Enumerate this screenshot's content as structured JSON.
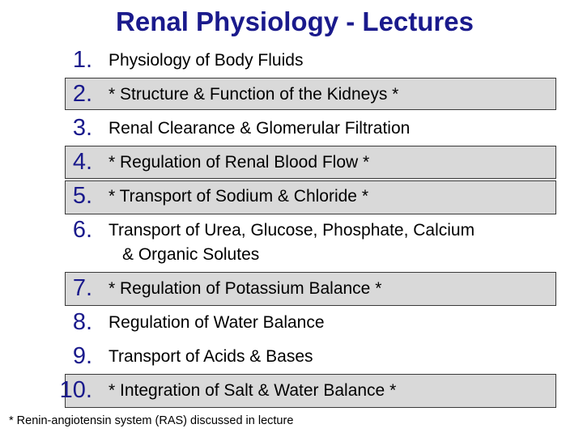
{
  "slide": {
    "title": "Renal Physiology - Lectures",
    "items": [
      {
        "num": "1.",
        "text": "Physiology of Body Fluids",
        "text2": "",
        "highlighted": false
      },
      {
        "num": "2.",
        "text": "* Structure & Function of the Kidneys *",
        "text2": "",
        "highlighted": true
      },
      {
        "num": "3.",
        "text": "Renal Clearance & Glomerular Filtration",
        "text2": "",
        "highlighted": false
      },
      {
        "num": "4.",
        "text": "* Regulation of Renal Blood Flow *",
        "text2": "",
        "highlighted": true
      },
      {
        "num": "5.",
        "text": "* Transport of Sodium & Chloride *",
        "text2": "",
        "highlighted": true
      },
      {
        "num": "6.",
        "text": "Transport of Urea, Glucose, Phosphate, Calcium",
        "text2": "& Organic Solutes",
        "highlighted": false
      },
      {
        "num": "7.",
        "text": "* Regulation of Potassium Balance *",
        "text2": "",
        "highlighted": true
      },
      {
        "num": "8.",
        "text": "Regulation of Water Balance",
        "text2": "",
        "highlighted": false
      },
      {
        "num": "9.",
        "text": "Transport of Acids & Bases",
        "text2": "",
        "highlighted": false
      },
      {
        "num": "10.",
        "text": "* Integration of Salt & Water Balance *",
        "text2": "",
        "highlighted": true
      }
    ],
    "footnote": "* Renin-angiotensin system (RAS) discussed in lecture",
    "colors": {
      "title": "#1a1a8c",
      "highlight": "#d9d9d9",
      "border": "#3a3a3a"
    }
  }
}
